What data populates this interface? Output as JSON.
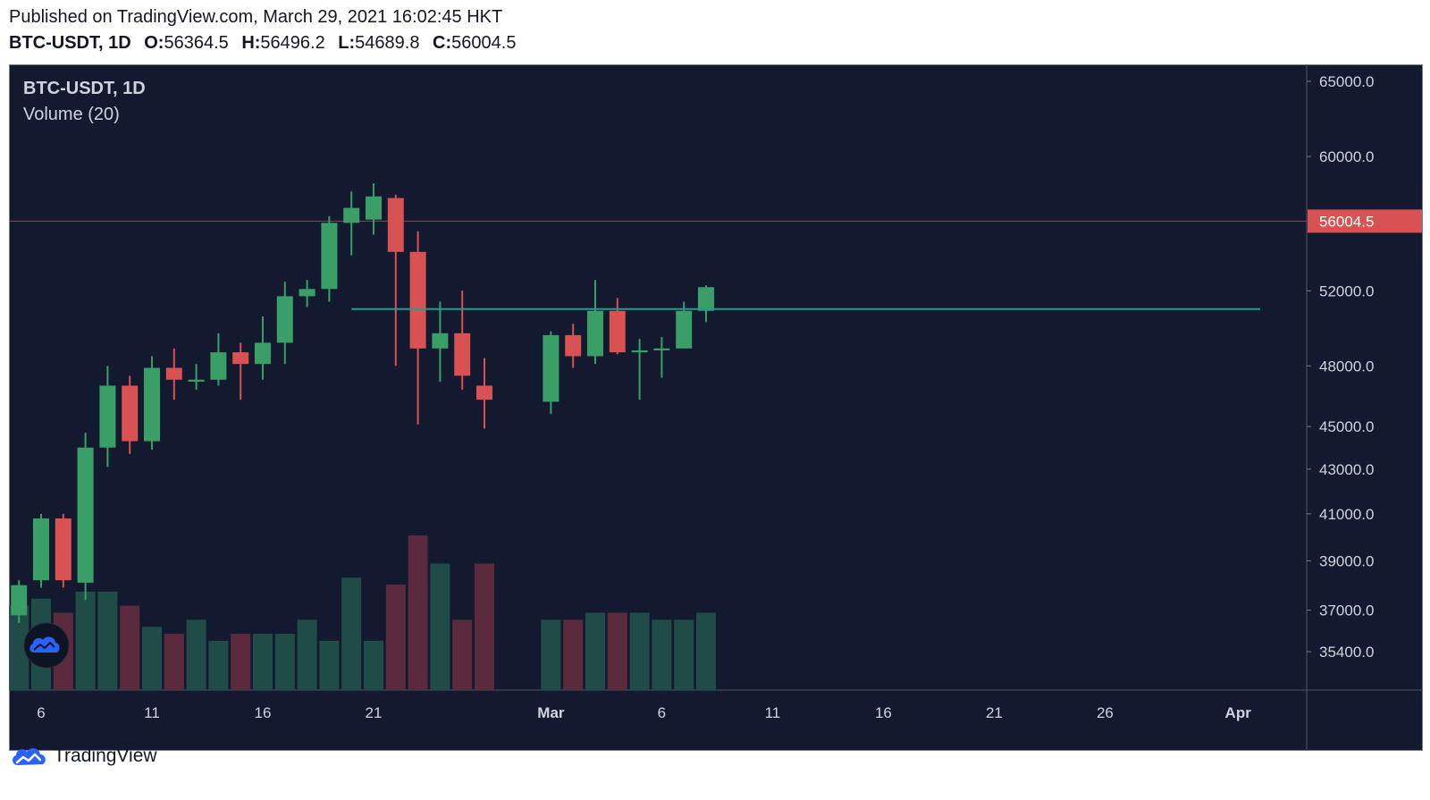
{
  "header": {
    "published": "Published on TradingView.com, March 29, 2021 16:02:45 HKT",
    "symbol": "BTC-USDT, 1D",
    "o_label": "O:",
    "o_value": "56364.5",
    "h_label": "H:",
    "h_value": "56496.2",
    "l_label": "L:",
    "l_value": "54689.8",
    "c_label": "C:",
    "c_value": "56004.5"
  },
  "legend": {
    "symbol": "BTC-USDT, 1D",
    "indicator": "Volume (20)"
  },
  "footer": {
    "brand": "TradingView",
    "icon": "tradingview-cloud-icon"
  },
  "colors": {
    "background": "#131a2f",
    "up": "#3a9f66",
    "down": "#d95253",
    "vol_up": "#1f4c47",
    "vol_down": "#5b2b3d",
    "price_line": "#d95253",
    "support_line": "#1f9e8f",
    "axis_text": "#d1d4dc"
  },
  "chart_data": {
    "type": "candlestick",
    "symbol": "BTC-USDT",
    "interval": "1D",
    "y_scale": "log",
    "y_ticks": [
      "65000.0",
      "60000.0",
      "52000.0",
      "48000.0",
      "45000.0",
      "43000.0",
      "41000.0",
      "39000.0",
      "37000.0",
      "35400.0"
    ],
    "last_price": "56004.5",
    "x_ticks": [
      {
        "label": "6",
        "date": "2021-02-06"
      },
      {
        "label": "11",
        "date": "2021-02-11"
      },
      {
        "label": "16",
        "date": "2021-02-16"
      },
      {
        "label": "21",
        "date": "2021-02-21"
      },
      {
        "label": "Mar",
        "date": "2021-03-01"
      },
      {
        "label": "6",
        "date": "2021-03-06"
      },
      {
        "label": "11",
        "date": "2021-03-11"
      },
      {
        "label": "16",
        "date": "2021-03-16"
      },
      {
        "label": "21",
        "date": "2021-03-21"
      },
      {
        "label": "26",
        "date": "2021-03-26"
      },
      {
        "label": "Apr",
        "date": "2021-04-01"
      }
    ],
    "support_level": 51000,
    "support_from": "2021-02-20",
    "support_to": "2021-04-02",
    "candles": [
      {
        "date": "2021-02-05",
        "o": 36800,
        "h": 38200,
        "l": 36500,
        "c": 38000,
        "v": 12
      },
      {
        "date": "2021-02-06",
        "o": 38200,
        "h": 41000,
        "l": 37900,
        "c": 40800,
        "v": 13
      },
      {
        "date": "2021-02-07",
        "o": 40800,
        "h": 41000,
        "l": 37900,
        "c": 38200,
        "v": 11
      },
      {
        "date": "2021-02-08",
        "o": 38100,
        "h": 44700,
        "l": 37400,
        "c": 44000,
        "v": 14
      },
      {
        "date": "2021-02-09",
        "o": 44000,
        "h": 48000,
        "l": 43100,
        "c": 47000,
        "v": 14
      },
      {
        "date": "2021-02-10",
        "o": 47000,
        "h": 47500,
        "l": 43700,
        "c": 44300,
        "v": 12
      },
      {
        "date": "2021-02-11",
        "o": 44300,
        "h": 48500,
        "l": 43900,
        "c": 47900,
        "v": 9
      },
      {
        "date": "2021-02-12",
        "o": 47900,
        "h": 48900,
        "l": 46300,
        "c": 47300,
        "v": 8
      },
      {
        "date": "2021-02-13",
        "o": 47200,
        "h": 48100,
        "l": 46800,
        "c": 47300,
        "v": 10
      },
      {
        "date": "2021-02-14",
        "o": 47300,
        "h": 49700,
        "l": 47000,
        "c": 48700,
        "v": 7
      },
      {
        "date": "2021-02-15",
        "o": 48700,
        "h": 49200,
        "l": 46300,
        "c": 48100,
        "v": 8
      },
      {
        "date": "2021-02-16",
        "o": 48100,
        "h": 50600,
        "l": 47300,
        "c": 49200,
        "v": 8
      },
      {
        "date": "2021-02-17",
        "o": 49200,
        "h": 52500,
        "l": 48100,
        "c": 51700,
        "v": 8
      },
      {
        "date": "2021-02-18",
        "o": 51700,
        "h": 52600,
        "l": 51100,
        "c": 52100,
        "v": 10
      },
      {
        "date": "2021-02-19",
        "o": 52100,
        "h": 56300,
        "l": 51400,
        "c": 55900,
        "v": 7
      },
      {
        "date": "2021-02-20",
        "o": 55900,
        "h": 57800,
        "l": 54000,
        "c": 56800,
        "v": 16
      },
      {
        "date": "2021-02-21",
        "o": 56100,
        "h": 58300,
        "l": 55200,
        "c": 57500,
        "v": 7
      },
      {
        "date": "2021-02-22",
        "o": 57400,
        "h": 57600,
        "l": 48000,
        "c": 54200,
        "v": 15
      },
      {
        "date": "2021-02-23",
        "o": 54200,
        "h": 55400,
        "l": 45100,
        "c": 48900,
        "v": 22
      },
      {
        "date": "2021-02-24",
        "o": 48900,
        "h": 51400,
        "l": 47200,
        "c": 49700,
        "v": 18
      },
      {
        "date": "2021-02-25",
        "o": 49700,
        "h": 52000,
        "l": 46800,
        "c": 47500,
        "v": 10
      },
      {
        "date": "2021-02-26",
        "o": 47000,
        "h": 48400,
        "l": 44900,
        "c": 46300,
        "v": 18
      },
      {
        "date": "2021-03-01",
        "o": 46200,
        "h": 49800,
        "l": 45600,
        "c": 49600,
        "v": 10
      },
      {
        "date": "2021-03-02",
        "o": 49600,
        "h": 50200,
        "l": 47900,
        "c": 48500,
        "v": 10
      },
      {
        "date": "2021-03-03",
        "o": 48500,
        "h": 52600,
        "l": 48100,
        "c": 50900,
        "v": 11
      },
      {
        "date": "2021-03-04",
        "o": 50900,
        "h": 51600,
        "l": 48600,
        "c": 48700,
        "v": 11
      },
      {
        "date": "2021-03-05",
        "o": 48700,
        "h": 49400,
        "l": 46300,
        "c": 48800,
        "v": 11
      },
      {
        "date": "2021-03-06",
        "o": 48800,
        "h": 49500,
        "l": 47400,
        "c": 48900,
        "v": 10
      },
      {
        "date": "2021-03-07",
        "o": 48900,
        "h": 51400,
        "l": 48900,
        "c": 50900,
        "v": 10
      },
      {
        "date": "2021-03-08",
        "o": 50900,
        "h": 52300,
        "l": 50300,
        "c": 52200,
        "v": 11
      }
    ]
  }
}
